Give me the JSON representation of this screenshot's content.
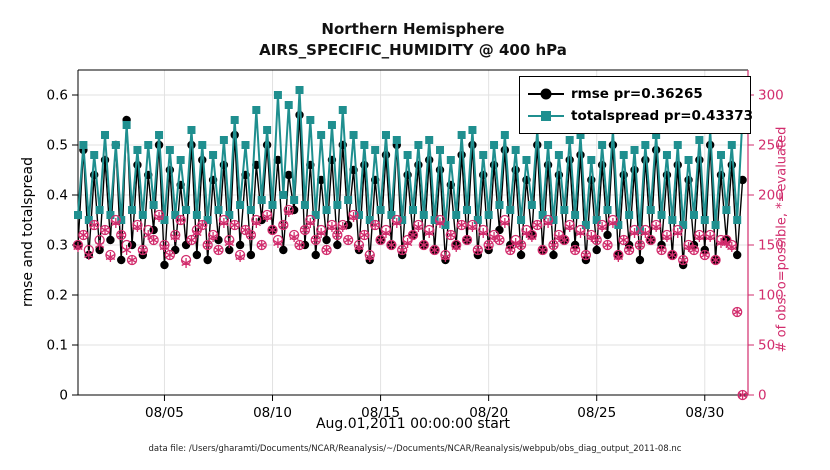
{
  "figure": {
    "title_line1": "Northern Hemisphere",
    "title_line2": "AIRS_SPECIFIC_HUMIDITY @ 400 hPa",
    "xlabel": "Aug.01,2011 00:00:00 start",
    "ylabel_left": "rmse and totalspread",
    "ylabel_right": "# of obs: o=possible, *=evaluated",
    "caption": "data file: /Users/gharamti/Documents/NCAR/Reanalysis/~/Documents/NCAR/Reanalysis/webpub/obs_diag_output_2011-08.nc"
  },
  "colors": {
    "black_series": "#000000",
    "teal_series": "#1f8f8f",
    "obs_pink": "#d22d6d",
    "grid": "#e2e2e2",
    "axis": "#000000"
  },
  "chart_data": {
    "type": "line",
    "title": "Northern Hemisphere — AIRS_SPECIFIC_HUMIDITY @ 400 hPa",
    "x_start_day": 1.0,
    "x_step_days": 0.25,
    "xlim": [
      1,
      32
    ],
    "x_ticks": [
      {
        "day": 5,
        "label": "08/05"
      },
      {
        "day": 10,
        "label": "08/10"
      },
      {
        "day": 15,
        "label": "08/15"
      },
      {
        "day": 20,
        "label": "08/20"
      },
      {
        "day": 25,
        "label": "08/25"
      },
      {
        "day": 30,
        "label": "08/30"
      }
    ],
    "ylim_left": [
      0,
      0.65
    ],
    "y_ticks_left": [
      0,
      0.1,
      0.2,
      0.3,
      0.4,
      0.5,
      0.6
    ],
    "ylim_right": [
      0,
      325
    ],
    "y_ticks_right": [
      0,
      50,
      100,
      150,
      200,
      250,
      300
    ],
    "grid": true,
    "grid_color": "#e2e2e2",
    "legend_position": "top-right-inside",
    "series": [
      {
        "name": "rmse pr=0.36265",
        "color": "#000000",
        "marker": "filled-circle",
        "line_width": 1.4,
        "values": [
          0.3,
          0.49,
          0.28,
          0.44,
          0.29,
          0.47,
          0.31,
          0.5,
          0.27,
          0.55,
          0.3,
          0.46,
          0.28,
          0.44,
          0.33,
          0.5,
          0.26,
          0.45,
          0.29,
          0.42,
          0.3,
          0.5,
          0.28,
          0.47,
          0.27,
          0.43,
          0.31,
          0.46,
          0.29,
          0.52,
          0.3,
          0.44,
          0.28,
          0.46,
          0.35,
          0.5,
          0.33,
          0.47,
          0.29,
          0.44,
          0.37,
          0.56,
          0.3,
          0.46,
          0.28,
          0.43,
          0.31,
          0.47,
          0.3,
          0.5,
          0.34,
          0.45,
          0.29,
          0.46,
          0.27,
          0.43,
          0.31,
          0.48,
          0.3,
          0.5,
          0.28,
          0.44,
          0.32,
          0.46,
          0.3,
          0.47,
          0.29,
          0.45,
          0.27,
          0.42,
          0.3,
          0.48,
          0.31,
          0.5,
          0.28,
          0.44,
          0.29,
          0.46,
          0.33,
          0.49,
          0.3,
          0.45,
          0.28,
          0.43,
          0.32,
          0.5,
          0.29,
          0.46,
          0.28,
          0.44,
          0.31,
          0.47,
          0.3,
          0.48,
          0.27,
          0.43,
          0.29,
          0.46,
          0.32,
          0.5,
          0.28,
          0.44,
          0.3,
          0.45,
          0.27,
          0.47,
          0.31,
          0.49,
          0.3,
          0.44,
          0.28,
          0.46,
          0.26,
          0.43,
          0.3,
          0.47,
          0.29,
          0.5,
          0.27,
          0.44,
          0.31,
          0.46,
          0.28,
          0.43
        ]
      },
      {
        "name": "totalspread pr=0.43373",
        "color": "#1f8f8f",
        "marker": "filled-square",
        "line_width": 2,
        "values": [
          0.36,
          0.5,
          0.35,
          0.48,
          0.37,
          0.52,
          0.36,
          0.5,
          0.35,
          0.54,
          0.37,
          0.49,
          0.36,
          0.5,
          0.38,
          0.52,
          0.35,
          0.49,
          0.36,
          0.47,
          0.37,
          0.53,
          0.36,
          0.5,
          0.35,
          0.48,
          0.37,
          0.51,
          0.36,
          0.55,
          0.38,
          0.5,
          0.37,
          0.57,
          0.39,
          0.53,
          0.38,
          0.6,
          0.4,
          0.58,
          0.39,
          0.61,
          0.38,
          0.55,
          0.36,
          0.52,
          0.37,
          0.54,
          0.38,
          0.57,
          0.39,
          0.52,
          0.36,
          0.5,
          0.35,
          0.49,
          0.37,
          0.52,
          0.36,
          0.51,
          0.35,
          0.48,
          0.37,
          0.5,
          0.36,
          0.51,
          0.35,
          0.49,
          0.34,
          0.47,
          0.36,
          0.52,
          0.37,
          0.53,
          0.35,
          0.48,
          0.36,
          0.5,
          0.38,
          0.52,
          0.37,
          0.49,
          0.35,
          0.47,
          0.38,
          0.53,
          0.36,
          0.5,
          0.35,
          0.48,
          0.37,
          0.51,
          0.36,
          0.52,
          0.34,
          0.47,
          0.35,
          0.5,
          0.37,
          0.53,
          0.34,
          0.48,
          0.36,
          0.49,
          0.33,
          0.5,
          0.37,
          0.52,
          0.36,
          0.48,
          0.35,
          0.5,
          0.34,
          0.47,
          0.36,
          0.51,
          0.35,
          0.53,
          0.34,
          0.48,
          0.37,
          0.5,
          0.35,
          0.56
        ]
      }
    ],
    "obs_series": [
      {
        "name": "possible",
        "marker": "circle",
        "color": "#d22d6d",
        "values": [
          150,
          160,
          145,
          170,
          155,
          165,
          140,
          175,
          160,
          150,
          135,
          170,
          145,
          165,
          155,
          180,
          150,
          140,
          160,
          175,
          135,
          155,
          165,
          170,
          150,
          160,
          145,
          175,
          155,
          170,
          140,
          165,
          160,
          175,
          150,
          180,
          165,
          155,
          170,
          185,
          160,
          150,
          165,
          175,
          155,
          165,
          145,
          170,
          160,
          170,
          155,
          180,
          150,
          160,
          140,
          170,
          155,
          165,
          150,
          175,
          145,
          155,
          160,
          170,
          150,
          165,
          145,
          175,
          140,
          160,
          150,
          170,
          155,
          170,
          145,
          165,
          150,
          160,
          155,
          175,
          145,
          155,
          150,
          165,
          160,
          170,
          145,
          175,
          150,
          160,
          155,
          170,
          145,
          165,
          140,
          160,
          155,
          170,
          150,
          175,
          140,
          155,
          145,
          165,
          150,
          165,
          155,
          170,
          145,
          160,
          140,
          165,
          135,
          150,
          145,
          160,
          140,
          160,
          135,
          155,
          155,
          150,
          83,
          0
        ]
      },
      {
        "name": "evaluated",
        "marker": "asterisk",
        "color": "#d22d6d",
        "values": [
          148,
          160,
          140,
          170,
          150,
          165,
          138,
          172,
          160,
          145,
          135,
          168,
          145,
          160,
          155,
          178,
          148,
          140,
          158,
          175,
          132,
          155,
          162,
          170,
          150,
          158,
          145,
          172,
          152,
          170,
          138,
          165,
          160,
          172,
          150,
          178,
          165,
          152,
          170,
          183,
          158,
          150,
          165,
          172,
          155,
          162,
          145,
          168,
          160,
          168,
          155,
          178,
          148,
          160,
          138,
          170,
          155,
          162,
          150,
          172,
          145,
          152,
          160,
          168,
          150,
          162,
          145,
          172,
          138,
          160,
          148,
          170,
          155,
          168,
          145,
          162,
          150,
          158,
          155,
          172,
          145,
          152,
          150,
          162,
          158,
          170,
          145,
          172,
          150,
          158,
          155,
          168,
          145,
          162,
          140,
          158,
          155,
          168,
          150,
          172,
          138,
          155,
          145,
          162,
          150,
          162,
          155,
          168,
          145,
          158,
          140,
          162,
          135,
          148,
          145,
          158,
          140,
          158,
          135,
          152,
          152,
          148,
          83,
          0
        ]
      }
    ]
  }
}
